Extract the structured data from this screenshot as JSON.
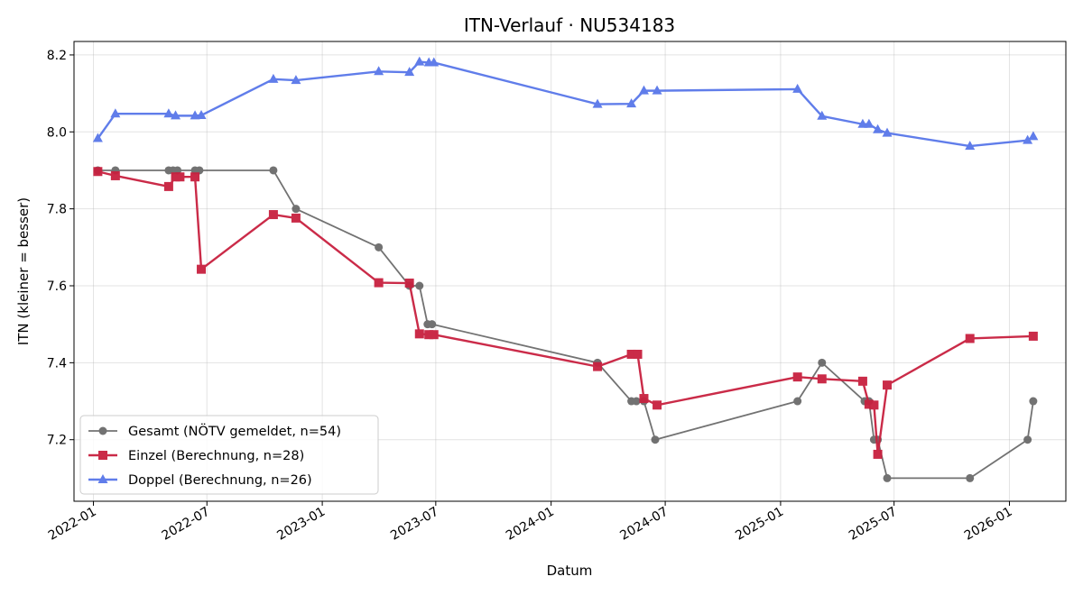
{
  "chart_data": {
    "type": "line",
    "title": "ITN-Verlauf · NU534183",
    "xlabel": "Datum",
    "ylabel": "ITN  (kleiner = besser)",
    "x_axis_type": "date",
    "xlim": [
      "2021-12-01",
      "2026-04-01"
    ],
    "ylim": [
      7.04,
      8.235
    ],
    "x_ticks": [
      "2022-01-01",
      "2022-07-01",
      "2023-01-01",
      "2023-07-01",
      "2024-01-01",
      "2024-07-01",
      "2025-01-01",
      "2025-07-01",
      "2026-01-01"
    ],
    "x_tick_labels": [
      "2022-01",
      "2022-07",
      "2023-01",
      "2023-07",
      "2024-01",
      "2024-07",
      "2025-01",
      "2025-07",
      "2026-01"
    ],
    "y_ticks": [
      7.2,
      7.4,
      7.6,
      7.8,
      8.0,
      8.2
    ],
    "y_tick_labels": [
      "7.2",
      "7.4",
      "7.6",
      "7.8",
      "8.0",
      "8.2"
    ],
    "grid": true,
    "legend_position": "lower-left",
    "series": [
      {
        "name": "Gesamt (NÖTV gemeldet, n=54)",
        "color": "#444444",
        "marker": "circle",
        "points": [
          [
            "2022-01-08",
            7.9
          ],
          [
            "2022-02-05",
            7.9
          ],
          [
            "2022-05-01",
            7.9
          ],
          [
            "2022-05-08",
            7.9
          ],
          [
            "2022-05-15",
            7.9
          ],
          [
            "2022-06-12",
            7.9
          ],
          [
            "2022-06-19",
            7.9
          ],
          [
            "2022-10-15",
            7.9
          ],
          [
            "2022-11-20",
            7.8
          ],
          [
            "2023-04-01",
            7.7
          ],
          [
            "2023-05-20",
            7.6
          ],
          [
            "2023-06-05",
            7.6
          ],
          [
            "2023-06-18",
            7.5
          ],
          [
            "2023-06-25",
            7.5
          ],
          [
            "2024-03-15",
            7.4
          ],
          [
            "2024-05-08",
            7.3
          ],
          [
            "2024-05-16",
            7.3
          ],
          [
            "2024-05-28",
            7.3
          ],
          [
            "2024-06-15",
            7.2
          ],
          [
            "2025-01-28",
            7.3
          ],
          [
            "2025-03-08",
            7.4
          ],
          [
            "2025-05-15",
            7.3
          ],
          [
            "2025-05-22",
            7.3
          ],
          [
            "2025-05-30",
            7.2
          ],
          [
            "2025-06-05",
            7.2
          ],
          [
            "2025-06-20",
            7.1
          ],
          [
            "2025-10-30",
            7.1
          ],
          [
            "2026-01-30",
            7.2
          ],
          [
            "2026-02-08",
            7.3
          ]
        ]
      },
      {
        "name": "Einzel (Berechnung, n=28)",
        "color": "#c8203f",
        "marker": "square",
        "points": [
          [
            "2022-01-08",
            7.897
          ],
          [
            "2022-02-05",
            7.886
          ],
          [
            "2022-05-01",
            7.858
          ],
          [
            "2022-05-12",
            7.883
          ],
          [
            "2022-05-19",
            7.883
          ],
          [
            "2022-06-12",
            7.883
          ],
          [
            "2022-06-22",
            7.643
          ],
          [
            "2022-10-15",
            7.785
          ],
          [
            "2022-11-20",
            7.776
          ],
          [
            "2023-04-01",
            7.608
          ],
          [
            "2023-05-20",
            7.607
          ],
          [
            "2023-06-05",
            7.475
          ],
          [
            "2023-06-20",
            7.473
          ],
          [
            "2023-06-28",
            7.473
          ],
          [
            "2024-03-15",
            7.39
          ],
          [
            "2024-05-08",
            7.422
          ],
          [
            "2024-05-18",
            7.422
          ],
          [
            "2024-05-28",
            7.307
          ],
          [
            "2024-06-18",
            7.29
          ],
          [
            "2025-01-28",
            7.363
          ],
          [
            "2025-03-08",
            7.358
          ],
          [
            "2025-05-12",
            7.352
          ],
          [
            "2025-05-22",
            7.292
          ],
          [
            "2025-05-30",
            7.29
          ],
          [
            "2025-06-05",
            7.162
          ],
          [
            "2025-06-20",
            7.342
          ],
          [
            "2025-10-30",
            7.463
          ],
          [
            "2026-02-08",
            7.469
          ]
        ]
      },
      {
        "name": "Doppel (Berechnung, n=26)",
        "color": "#4f6fe8",
        "marker": "triangle",
        "points": [
          [
            "2022-01-08",
            7.983
          ],
          [
            "2022-02-05",
            8.047
          ],
          [
            "2022-05-01",
            8.047
          ],
          [
            "2022-05-12",
            8.042
          ],
          [
            "2022-06-12",
            8.042
          ],
          [
            "2022-06-22",
            8.043
          ],
          [
            "2022-10-15",
            8.137
          ],
          [
            "2022-11-20",
            8.134
          ],
          [
            "2023-04-01",
            8.157
          ],
          [
            "2023-05-20",
            8.155
          ],
          [
            "2023-06-05",
            8.182
          ],
          [
            "2023-06-20",
            8.18
          ],
          [
            "2023-06-28",
            8.18
          ],
          [
            "2024-03-15",
            8.072
          ],
          [
            "2024-05-08",
            8.073
          ],
          [
            "2024-05-28",
            8.107
          ],
          [
            "2024-06-18",
            8.107
          ],
          [
            "2025-01-28",
            8.111
          ],
          [
            "2025-03-08",
            8.041
          ],
          [
            "2025-05-12",
            8.02
          ],
          [
            "2025-05-22",
            8.02
          ],
          [
            "2025-06-05",
            8.006
          ],
          [
            "2025-06-20",
            7.997
          ],
          [
            "2025-10-30",
            7.963
          ],
          [
            "2026-01-30",
            7.978
          ],
          [
            "2026-02-08",
            7.988
          ]
        ]
      }
    ]
  }
}
